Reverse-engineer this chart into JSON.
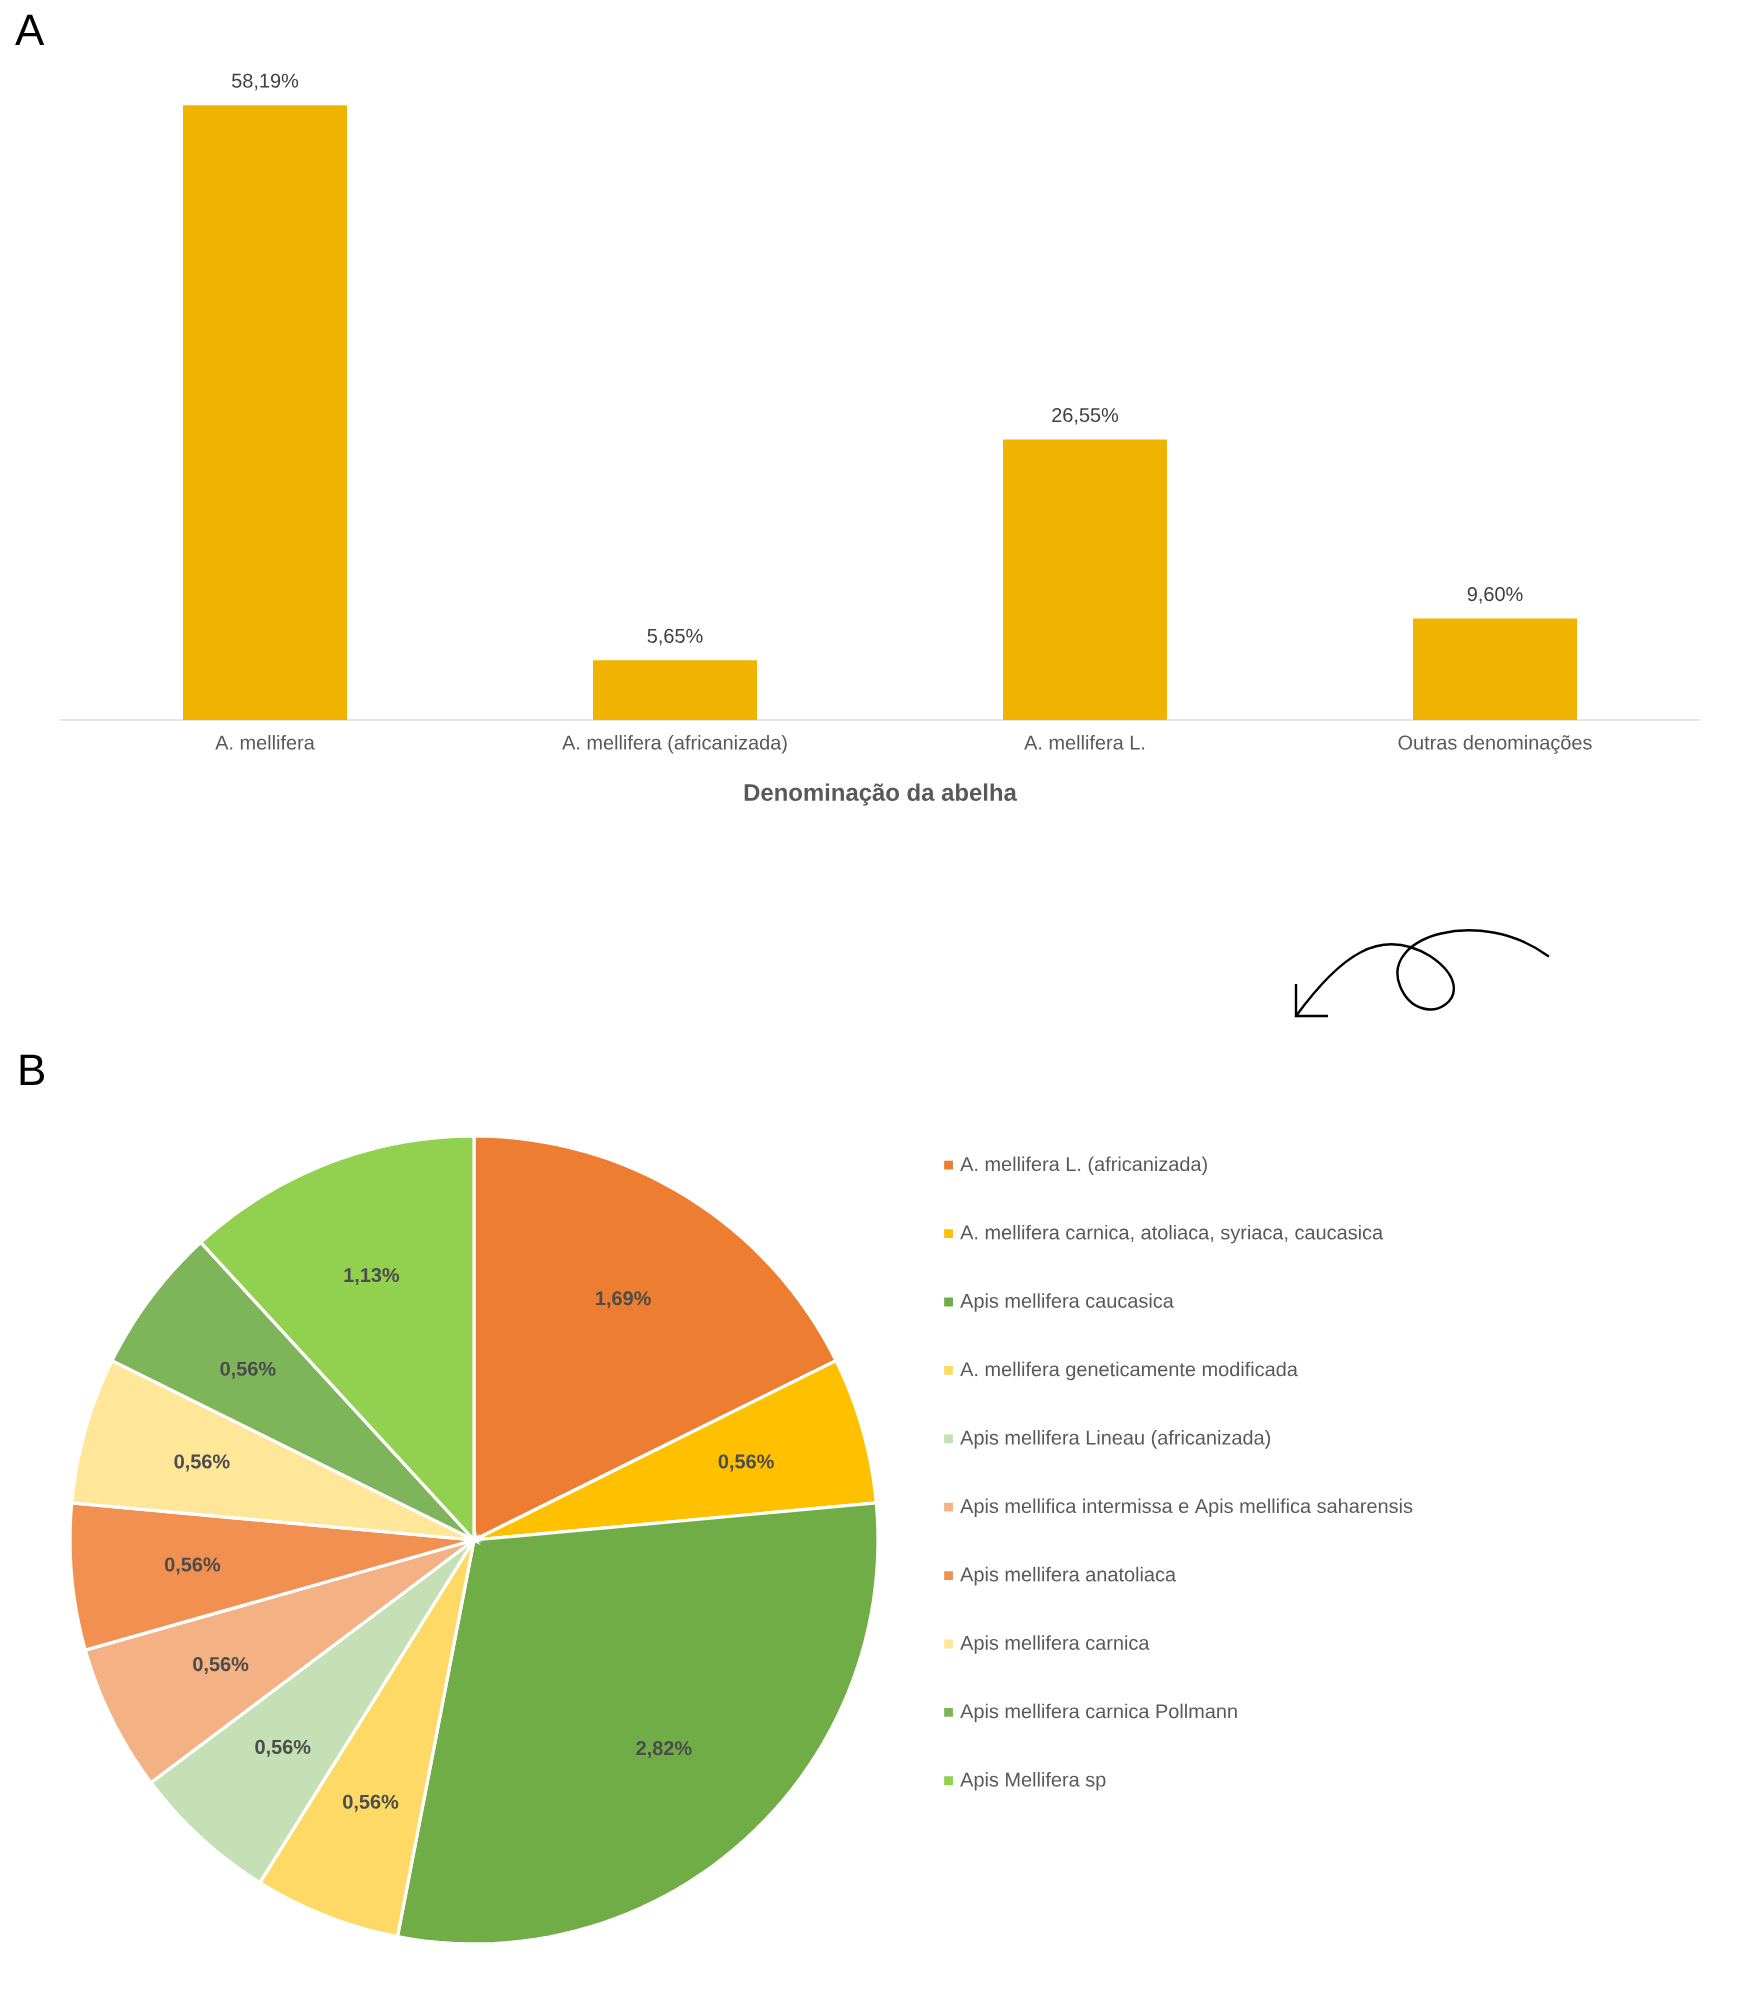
{
  "chart_data": [
    {
      "type": "bar",
      "title": "A",
      "xlabel": "Denominação da abelha",
      "categories": [
        "A. mellifera",
        "A. mellifera (africanizada)",
        "A. mellifera L.",
        "Outras denominações"
      ],
      "values": [
        58.19,
        5.65,
        26.55,
        9.6
      ],
      "value_labels": [
        "58,19%",
        "5,65%",
        "26,55%",
        "9,60%"
      ],
      "color": "#f0b400"
    },
    {
      "type": "pie",
      "title": "B",
      "categories": [
        "A. mellifera L. (africanizada)",
        "A. mellifera carnica, atoliaca, syriaca, caucasica",
        "Apis mellifera caucasica",
        "A. mellifera geneticamente modificada",
        "Apis mellifera Lineau (africanizada)",
        "Apis mellifica intermissa e Apis mellifica saharensis",
        "Apis mellifera anatoliaca",
        "Apis mellifera carnica",
        "Apis mellifera carnica Pollmann",
        "Apis Mellifera sp"
      ],
      "values": [
        1.69,
        0.56,
        2.82,
        0.56,
        0.56,
        0.56,
        0.56,
        0.56,
        0.56,
        1.13
      ],
      "value_labels": [
        "1,69%",
        "0,56%",
        "2,82%",
        "0,56%",
        "0,56%",
        "0,56%",
        "0,56%",
        "0,56%",
        "0,56%",
        "1,13%"
      ],
      "colors": [
        "#ed7d31",
        "#ffc000",
        "#70ad47",
        "#ffd966",
        "#c5e0b4",
        "#f4b183",
        "#f19050",
        "#ffe699",
        "#7eb45a",
        "#92d050"
      ],
      "legend": "right"
    }
  ]
}
